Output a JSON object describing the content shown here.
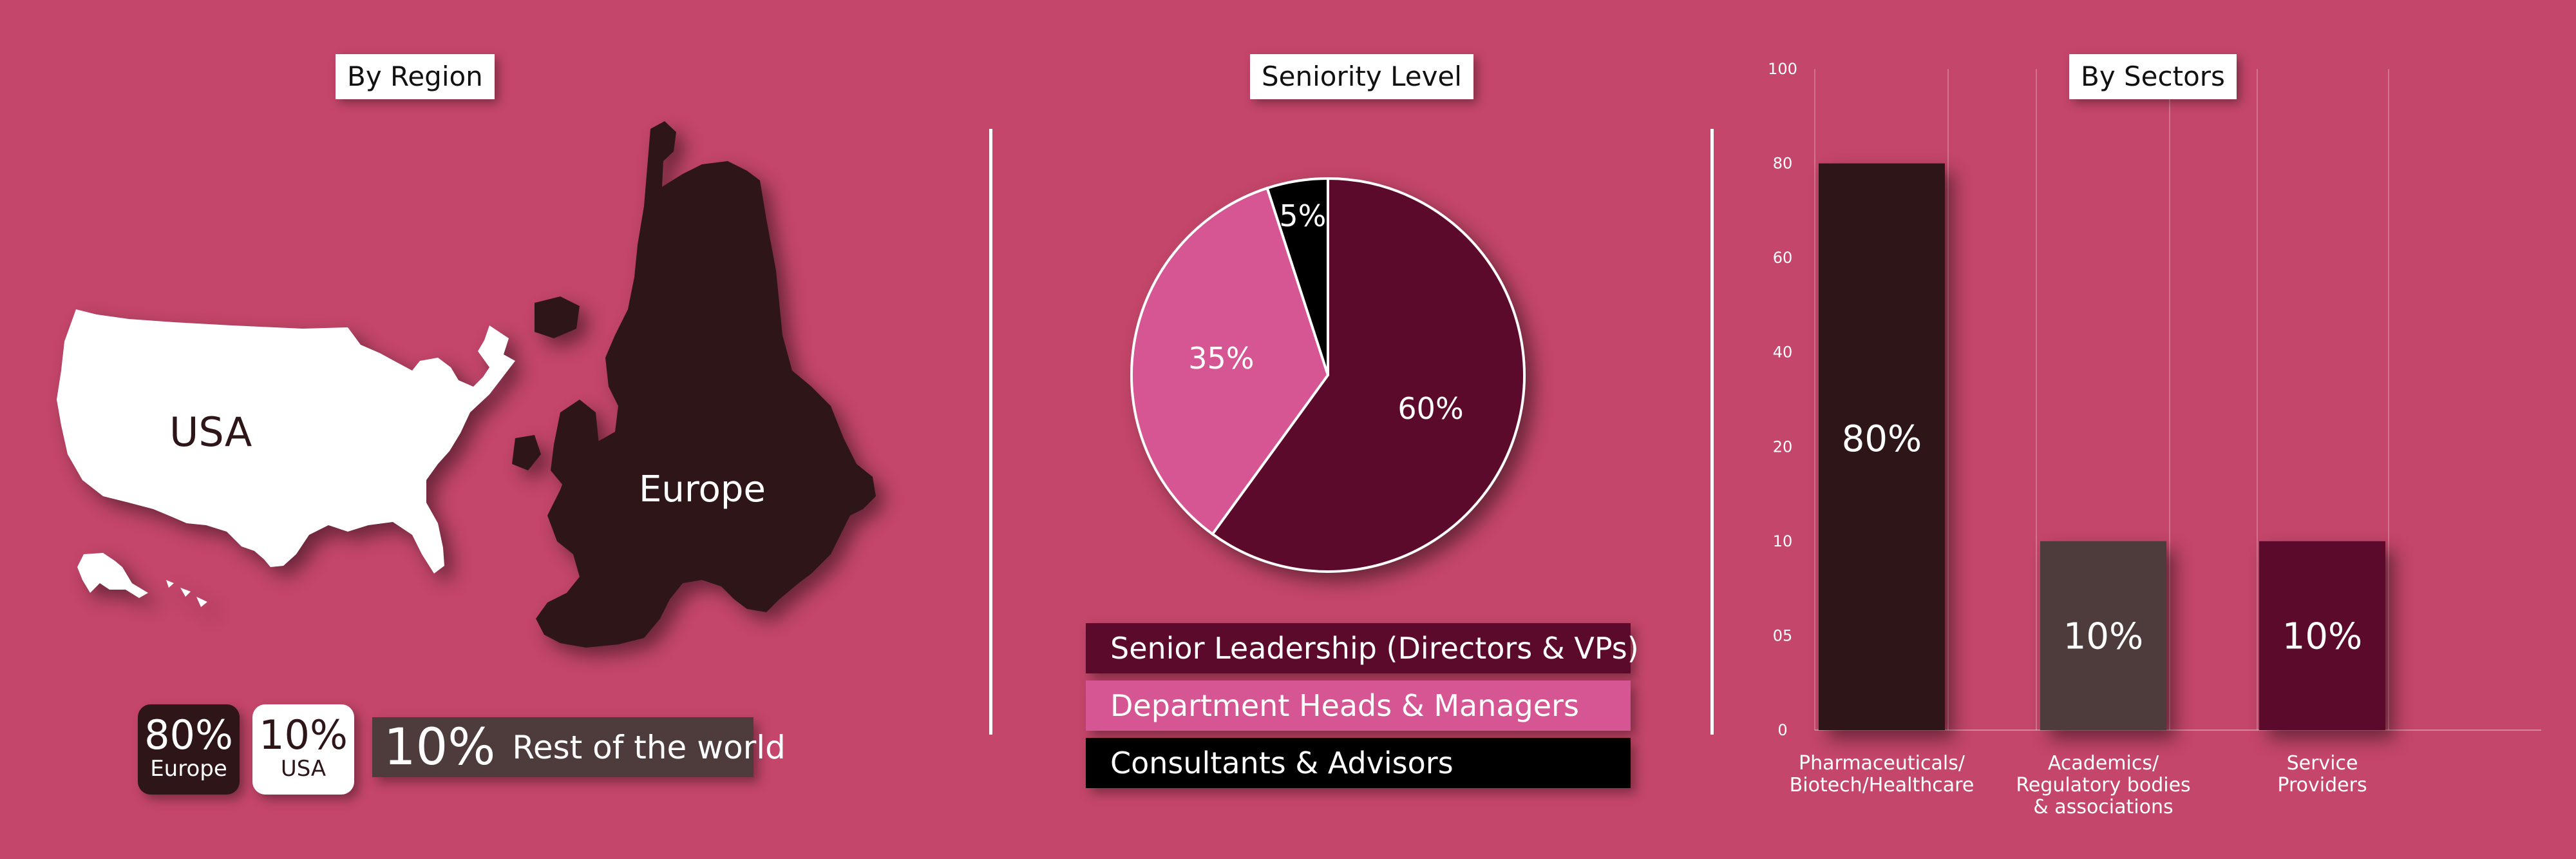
{
  "colors": {
    "background": "#c4466a",
    "europe": "#2e1518",
    "usa": "#ffffff",
    "rest": "#4e3c3c",
    "senior": "#5c0a2b",
    "heads": "#d65593",
    "consultants": "#000000"
  },
  "region": {
    "title": "By Region",
    "usa_label": "USA",
    "europe_label": "Europe",
    "stats": [
      {
        "pct": "80%",
        "label": "Europe"
      },
      {
        "pct": "10%",
        "label": "USA"
      },
      {
        "pct": "10%",
        "label": "Rest of the world"
      }
    ]
  },
  "seniority": {
    "title": "Seniority Level",
    "legend": [
      "Senior Leadership (Directors & VPs)",
      "Department Heads & Managers",
      "Consultants & Advisors"
    ]
  },
  "sectors": {
    "title": "By Sectors"
  },
  "chart_data": [
    {
      "type": "pie",
      "title": "Seniority Level",
      "categories": [
        "Senior Leadership (Directors & VPs)",
        "Department Heads & Managers",
        "Consultants & Advisors"
      ],
      "values": [
        60,
        35,
        5
      ],
      "labels": [
        "60%",
        "35%",
        "5%"
      ]
    },
    {
      "type": "bar",
      "title": "By Sectors",
      "categories": [
        "Pharmaceuticals/ Biotech/Healthcare",
        "Academics/ Regulatory bodies & associations",
        "Service Providers"
      ],
      "category_lines": [
        [
          "Pharmaceuticals/",
          "Biotech/Healthcare"
        ],
        [
          "Academics/",
          "Regulatory bodies",
          "& associations"
        ],
        [
          "Service",
          "Providers"
        ]
      ],
      "values": [
        80,
        10,
        10
      ],
      "labels": [
        "80%",
        "10%",
        "10%"
      ],
      "yticks": [
        "0",
        "05",
        "10",
        "20",
        "40",
        "60",
        "80",
        "100"
      ],
      "grid": true
    }
  ]
}
